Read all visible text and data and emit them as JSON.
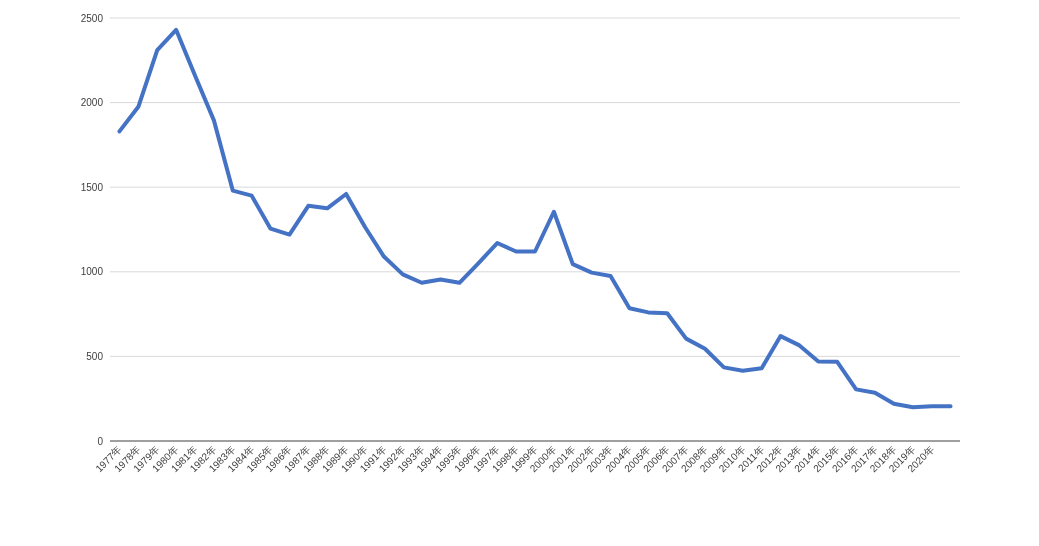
{
  "chart_data": {
    "type": "line",
    "categories": [
      "1977年",
      "1978年",
      "1979年",
      "1980年",
      "1981年",
      "1982年",
      "1983年",
      "1984年",
      "1985年",
      "1986年",
      "1987年",
      "1988年",
      "1989年",
      "1990年",
      "1991年",
      "1992年",
      "1993年",
      "1994年",
      "1995年",
      "1996年",
      "1997年",
      "1998年",
      "1999年",
      "2000年",
      "2001年",
      "2002年",
      "2003年",
      "2004年",
      "2005年",
      "2006年",
      "2007年",
      "2008年",
      "2009年",
      "2010年",
      "2011年",
      "2012年",
      "2013年",
      "2014年",
      "2015年",
      "2016年",
      "2017年",
      "2018年",
      "2019年",
      "2020年",
      null
    ],
    "series": [
      {
        "color": "#4472c4",
        "values": [
          1830,
          1975,
          2310,
          2430,
          2160,
          1895,
          1480,
          1450,
          1255,
          1220,
          1390,
          1375,
          1460,
          1265,
          1090,
          985,
          935,
          955,
          935,
          1050,
          1170,
          1120,
          1120,
          1355,
          1045,
          995,
          975,
          785,
          760,
          755,
          605,
          545,
          435,
          415,
          430,
          620,
          565,
          470,
          468,
          305,
          285,
          220,
          200,
          205,
          205
        ]
      }
    ],
    "ylim": [
      0,
      2500
    ],
    "yticks": [
      0,
      500,
      1000,
      1500,
      2000,
      2500
    ],
    "grid": "y"
  }
}
